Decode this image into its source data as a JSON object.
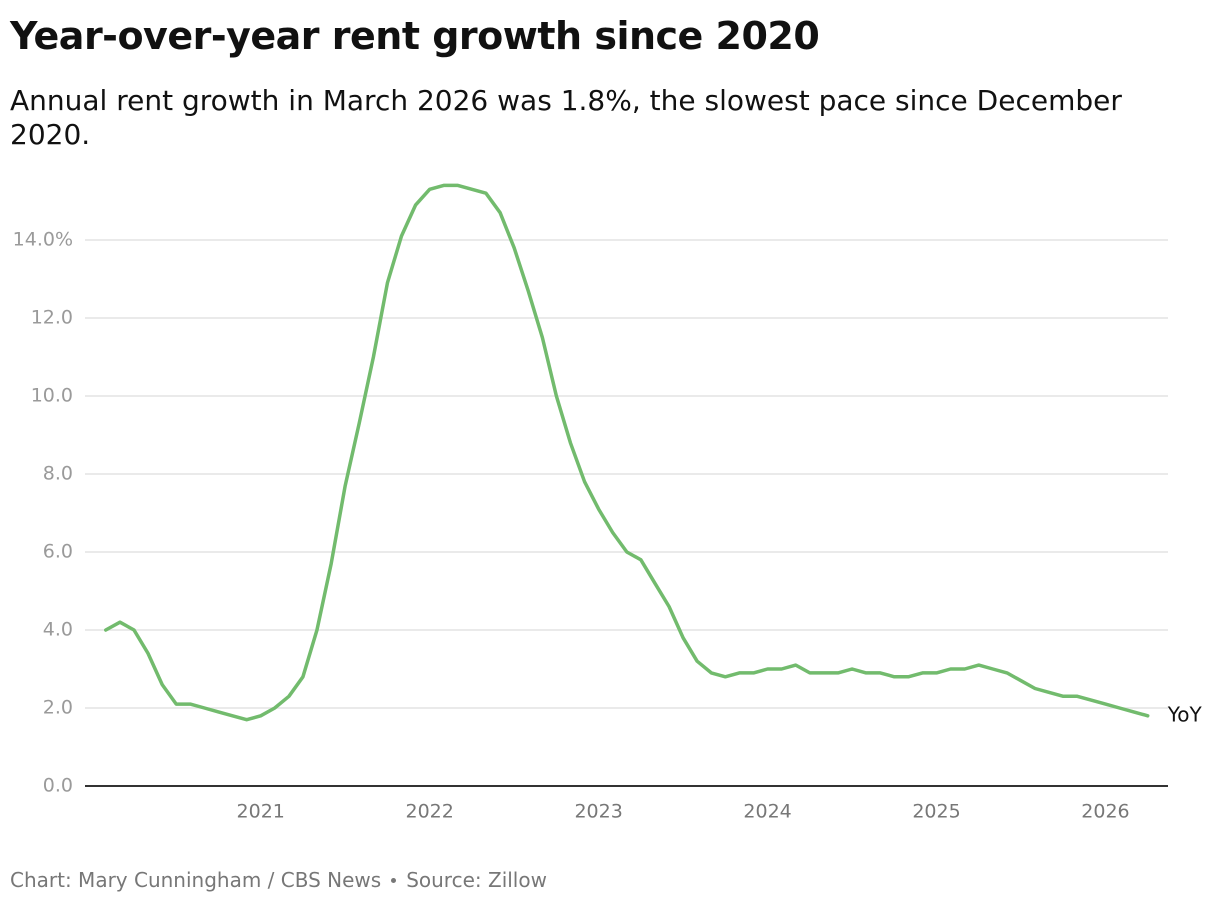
{
  "chart_data": {
    "type": "line",
    "title": "Year-over-year rent growth since 2020",
    "subtitle": "Annual rent growth in March 2026 was 1.8%, the slowest pace since December 2020.",
    "credit": "Chart: Mary Cunningham / CBS News",
    "source": "Source: Zillow",
    "x": [
      2020.083,
      2020.167,
      2020.25,
      2020.333,
      2020.417,
      2020.5,
      2020.583,
      2020.667,
      2020.75,
      2020.833,
      2020.917,
      2021,
      2021.083,
      2021.167,
      2021.25,
      2021.333,
      2021.417,
      2021.5,
      2021.583,
      2021.667,
      2021.75,
      2021.833,
      2021.917,
      2022,
      2022.083,
      2022.167,
      2022.25,
      2022.333,
      2022.417,
      2022.5,
      2022.583,
      2022.667,
      2022.75,
      2022.833,
      2022.917,
      2023,
      2023.083,
      2023.167,
      2023.25,
      2023.333,
      2023.417,
      2023.5,
      2023.583,
      2023.667,
      2023.75,
      2023.833,
      2023.917,
      2024,
      2024.083,
      2024.167,
      2024.25,
      2024.333,
      2024.417,
      2024.5,
      2024.583,
      2024.667,
      2024.75,
      2024.833,
      2024.917,
      2025,
      2025.083,
      2025.167,
      2025.25,
      2025.333,
      2025.417,
      2025.5,
      2025.583,
      2025.667,
      2025.75,
      2025.833,
      2025.917,
      2026,
      2026.083,
      2026.167,
      2026.25
    ],
    "series": [
      {
        "name": "YoY",
        "color": "#72bb6d",
        "values": [
          4.0,
          4.2,
          4.0,
          3.4,
          2.6,
          2.1,
          2.1,
          2.0,
          1.9,
          1.8,
          1.7,
          1.8,
          2.0,
          2.3,
          2.8,
          4.0,
          5.7,
          7.7,
          9.3,
          11.0,
          12.9,
          14.1,
          14.9,
          15.3,
          15.4,
          15.4,
          15.3,
          15.2,
          14.7,
          13.8,
          12.7,
          11.5,
          10.0,
          8.8,
          7.8,
          7.1,
          6.5,
          6.0,
          5.8,
          5.2,
          4.6,
          3.8,
          3.2,
          2.9,
          2.8,
          2.9,
          2.9,
          3.0,
          3.0,
          3.1,
          2.9,
          2.9,
          2.9,
          3.0,
          2.9,
          2.9,
          2.8,
          2.8,
          2.9,
          2.9,
          3.0,
          3.0,
          3.1,
          3.0,
          2.9,
          2.7,
          2.5,
          2.4,
          2.3,
          2.3,
          2.2,
          2.1,
          2.0,
          1.9,
          1.8
        ]
      }
    ],
    "xlim": [
      2019.96,
      2026.37
    ],
    "xticks": [
      2021,
      2022,
      2023,
      2024,
      2025,
      2026
    ],
    "ylim": [
      0,
      15.6
    ],
    "yticks": [
      {
        "value": 0,
        "label": "0.0"
      },
      {
        "value": 2,
        "label": "2.0"
      },
      {
        "value": 4,
        "label": "4.0"
      },
      {
        "value": 6,
        "label": "6.0"
      },
      {
        "value": 8,
        "label": "8.0"
      },
      {
        "value": 10,
        "label": "10.0"
      },
      {
        "value": 12,
        "label": "12.0"
      },
      {
        "value": 14,
        "label": "14.0%"
      }
    ],
    "grid": true
  }
}
